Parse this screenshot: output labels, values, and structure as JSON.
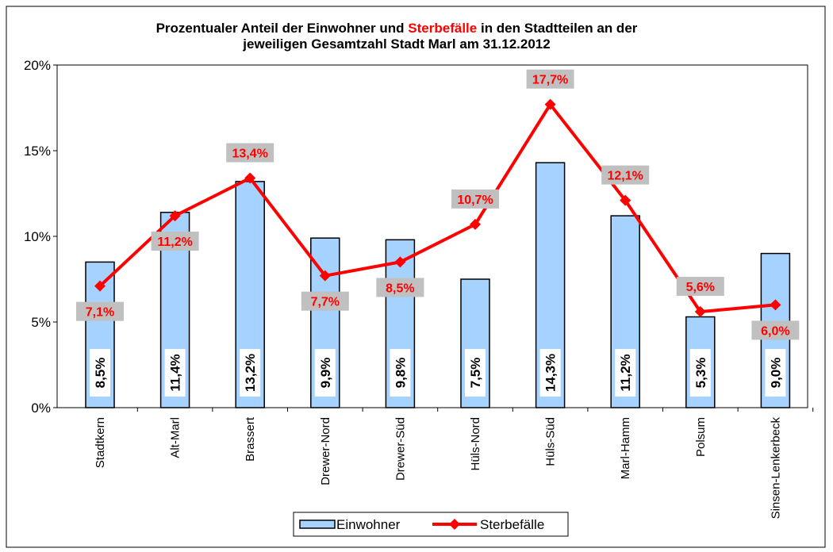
{
  "chart_data": {
    "type": "bar_line",
    "title_parts": [
      "Prozentualer Anteil der Einwohner und",
      "Sterbefälle",
      "in den Stadtteilen an der",
      "jeweiligen Gesamtzahl Stadt Marl am 31.12.2012"
    ],
    "categories": [
      "Stadtkern",
      "Alt-Marl",
      "Brassert",
      "Drewer-Nord",
      "Drewer-Süd",
      "Hüls-Nord",
      "Hüls-Süd",
      "Marl-Hamm",
      "Polsum",
      "Sinsen-Lenkerbeck"
    ],
    "series": [
      {
        "name": "Einwohner",
        "type": "bar",
        "color": "#a6d2ff",
        "values": [
          8.5,
          11.4,
          13.2,
          9.9,
          9.8,
          7.5,
          14.3,
          11.2,
          5.3,
          9.0
        ],
        "value_labels": [
          "8,5%",
          "11,4%",
          "13,2%",
          "9,9%",
          "9,8%",
          "7,5%",
          "14,3%",
          "11,2%",
          "5,3%",
          "9,0%"
        ]
      },
      {
        "name": "Sterbefälle",
        "type": "line",
        "color": "#ff0000",
        "values": [
          7.1,
          11.2,
          13.4,
          7.7,
          8.5,
          10.7,
          17.7,
          12.1,
          5.6,
          6.0
        ],
        "value_labels": [
          "7,1%",
          "11,2%",
          "13,4%",
          "7,7%",
          "8,5%",
          "10,7%",
          "17,7%",
          "12,1%",
          "5,6%",
          "6,0%"
        ]
      }
    ],
    "ylim": [
      0,
      20
    ],
    "yticks": [
      {
        "value": 0,
        "label": "0%"
      },
      {
        "value": 5,
        "label": "5%"
      },
      {
        "value": 10,
        "label": "10%"
      },
      {
        "value": 15,
        "label": "15%"
      },
      {
        "value": 20,
        "label": "20%"
      }
    ],
    "grid": false,
    "legend": "bottom"
  }
}
